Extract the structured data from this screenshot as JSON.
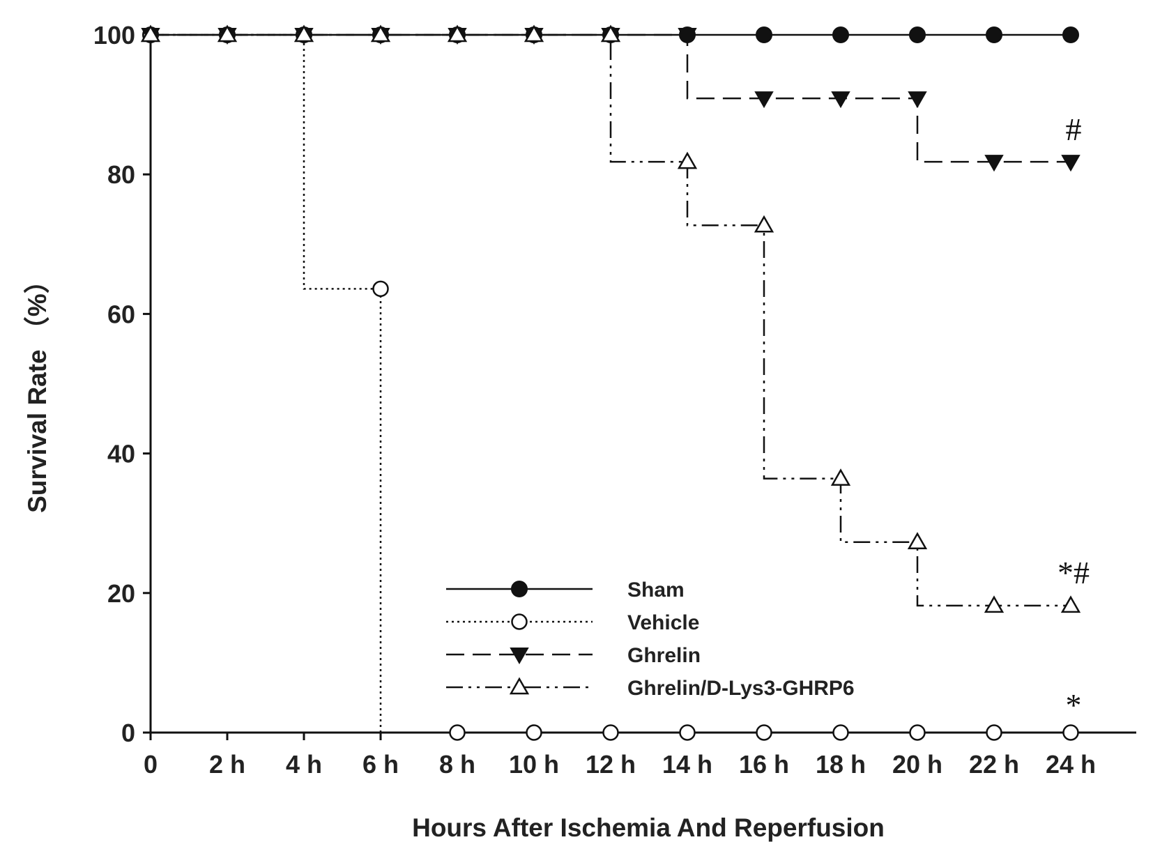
{
  "chart_data": {
    "type": "line",
    "title": "",
    "xlabel": "Hours After Ischemia And Reperfusion",
    "ylabel": "Survival Rate （%）",
    "x": [
      0,
      2,
      4,
      6,
      8,
      10,
      12,
      14,
      16,
      18,
      20,
      22,
      24
    ],
    "x_tick_labels": [
      "0",
      "2 h",
      "4 h",
      "6 h",
      "8 h",
      "10 h",
      "12 h",
      "14 h",
      "16 h",
      "18 h",
      "20 h",
      "22 h",
      "24 h"
    ],
    "xlim": [
      0,
      25.7
    ],
    "ylim": [
      0,
      100
    ],
    "y_ticks": [
      0,
      20,
      40,
      60,
      80,
      100
    ],
    "y_tick_labels": [
      "0",
      "20",
      "40",
      "60",
      "80",
      "100"
    ],
    "step": true,
    "legend_position": "bottom-center",
    "series": [
      {
        "name": "Sham",
        "marker": "filled-circle",
        "line_style": "solid",
        "color": "#111111",
        "values": [
          100,
          100,
          100,
          100,
          100,
          100,
          100,
          100,
          100,
          100,
          100,
          100,
          100
        ]
      },
      {
        "name": "Vehicle",
        "marker": "open-circle",
        "line_style": "dotted",
        "color": "#111111",
        "values": [
          100,
          100,
          100,
          63.6,
          0,
          0,
          0,
          0,
          0,
          0,
          0,
          0,
          0
        ]
      },
      {
        "name": "Ghrelin",
        "marker": "filled-triangle-down",
        "line_style": "dashed",
        "color": "#111111",
        "values": [
          100,
          100,
          100,
          100,
          100,
          100,
          100,
          100,
          90.9,
          90.9,
          90.9,
          81.8,
          81.8
        ]
      },
      {
        "name": "Ghrelin/D-Lys3-GHRP6",
        "marker": "open-triangle-up",
        "line_style": "dash-dot-dot",
        "color": "#111111",
        "values": [
          100,
          100,
          100,
          100,
          100,
          100,
          100,
          81.8,
          72.7,
          36.4,
          27.3,
          18.2,
          18.2
        ]
      }
    ],
    "annotations": [
      {
        "text": "#",
        "x": 24,
        "y": 86.5,
        "series": "Ghrelin"
      },
      {
        "text": "*#",
        "x": 24,
        "y": 23,
        "series": "Ghrelin/D-Lys3-GHRP6"
      },
      {
        "text": "*",
        "x": 24,
        "y": 4,
        "series": "Vehicle"
      }
    ]
  }
}
